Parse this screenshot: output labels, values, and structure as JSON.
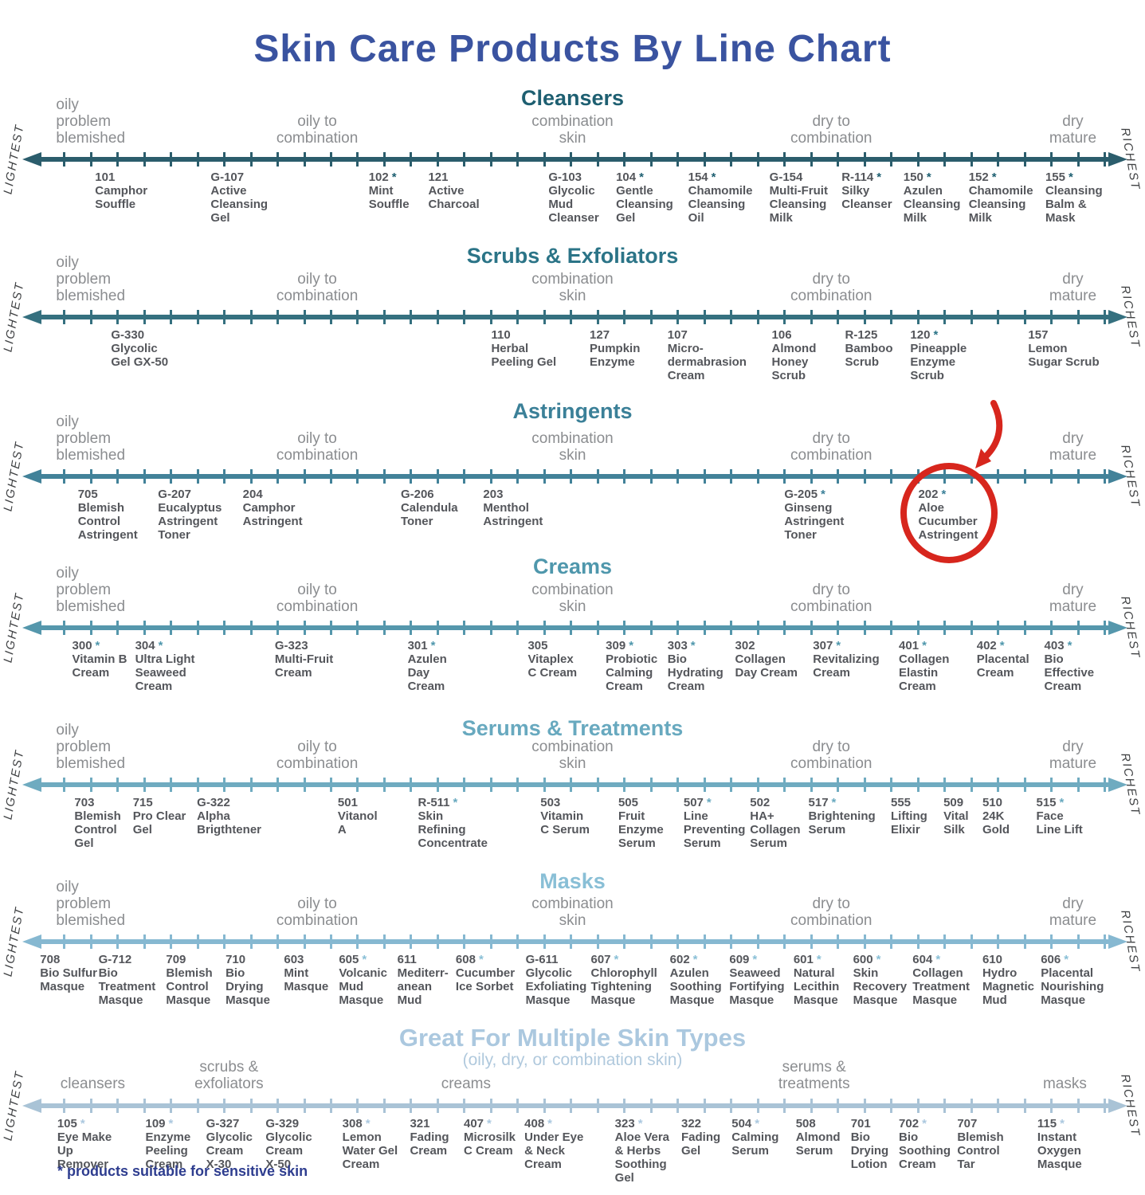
{
  "title": "Skin Care Products By Line Chart",
  "title_color": "#3a53a0",
  "footnote": {
    "text": "* products suitable for sensitive skin",
    "color": "#2e3d8f"
  },
  "side_labels": {
    "left": "LIGHTEST",
    "right": "RICHEST"
  },
  "axis_labels_standard": [
    {
      "text": "oily\nproblem\nblemished",
      "x": 4.9,
      "align": "left"
    },
    {
      "text": "oily to\ncombination",
      "x": 27.7,
      "align": "center"
    },
    {
      "text": "combination\nskin",
      "x": 50,
      "align": "center"
    },
    {
      "text": "dry to\ncombination",
      "x": 72.6,
      "align": "center"
    },
    {
      "text": "dry\nmature",
      "x": 93.7,
      "align": "center"
    }
  ],
  "sections": [
    {
      "title": "Cleansers",
      "color": "#1e5f71",
      "line_color": "#2b5d6c",
      "products": [
        {
          "num": "101",
          "star": false,
          "name": "Camphor\nSouffle",
          "x": 8.3
        },
        {
          "num": "G-107",
          "star": false,
          "name": "Active\nCleansing\nGel",
          "x": 18.4
        },
        {
          "num": "102",
          "star": true,
          "name": "Mint\nSouffle",
          "x": 32.2
        },
        {
          "num": "121",
          "star": false,
          "name": "Active\nCharcoal",
          "x": 37.4
        },
        {
          "num": "G-103",
          "star": false,
          "name": "Glycolic\nMud\nCleanser",
          "x": 47.9
        },
        {
          "num": "104",
          "star": true,
          "name": "Gentle\nCleansing\nGel",
          "x": 53.8
        },
        {
          "num": "154",
          "star": true,
          "name": "Chamomile\nCleansing\nOil",
          "x": 60.1
        },
        {
          "num": "G-154",
          "star": false,
          "name": "Multi-Fruit\nCleansing\nMilk",
          "x": 67.2
        },
        {
          "num": "R-114",
          "star": true,
          "name": "Silky\nCleanser",
          "x": 73.5
        },
        {
          "num": "150",
          "star": true,
          "name": "Azulen\nCleansing\nMilk",
          "x": 78.9
        },
        {
          "num": "152",
          "star": true,
          "name": "Chamomile\nCleansing\nMilk",
          "x": 84.6
        },
        {
          "num": "155",
          "star": true,
          "name": "Cleansing\nBalm &\nMask",
          "x": 91.3
        }
      ]
    },
    {
      "title": "Scrubs & Exfoliators",
      "color": "#2b7487",
      "line_color": "#35707f",
      "products": [
        {
          "num": "G-330",
          "star": false,
          "name": "Glycolic\nGel GX-50",
          "x": 9.7
        },
        {
          "num": "110",
          "star": false,
          "name": "Herbal\nPeeling Gel",
          "x": 42.9
        },
        {
          "num": "127",
          "star": false,
          "name": "Pumpkin\nEnzyme",
          "x": 51.5
        },
        {
          "num": "107",
          "star": false,
          "name": "Micro-\ndermabrasion\nCream",
          "x": 58.3
        },
        {
          "num": "106",
          "star": false,
          "name": "Almond\nHoney\nScrub",
          "x": 67.4
        },
        {
          "num": "R-125",
          "star": false,
          "name": "Bamboo\nScrub",
          "x": 73.8
        },
        {
          "num": "120",
          "star": true,
          "name": "Pineapple\nEnzyme\nScrub",
          "x": 79.5
        },
        {
          "num": "157",
          "star": false,
          "name": "Lemon\nSugar Scrub",
          "x": 89.8
        }
      ]
    },
    {
      "title": "Astringents",
      "color": "#3b8098",
      "line_color": "#428299",
      "products": [
        {
          "num": "705",
          "star": false,
          "name": "Blemish\nControl\nAstringent",
          "x": 6.8
        },
        {
          "num": "G-207",
          "star": false,
          "name": "Eucalyptus\nAstringent\nToner",
          "x": 13.8
        },
        {
          "num": "204",
          "star": false,
          "name": "Camphor\nAstringent",
          "x": 21.2
        },
        {
          "num": "G-206",
          "star": false,
          "name": "Calendula\nToner",
          "x": 35.0
        },
        {
          "num": "203",
          "star": false,
          "name": "Menthol\nAstringent",
          "x": 42.2
        },
        {
          "num": "G-205",
          "star": true,
          "name": "Ginseng\nAstringent\nToner",
          "x": 68.5
        },
        {
          "num": "202",
          "star": true,
          "name": "Aloe\nCucumber\nAstringent",
          "x": 80.2
        }
      ]
    },
    {
      "title": "Creams",
      "color": "#4f97ac",
      "line_color": "#5597ac",
      "products": [
        {
          "num": "300",
          "star": true,
          "name": "Vitamin B\nCream",
          "x": 6.3
        },
        {
          "num": "304",
          "star": true,
          "name": "Ultra Light\nSeaweed\nCream",
          "x": 11.8
        },
        {
          "num": "G-323",
          "star": false,
          "name": "Multi-Fruit\nCream",
          "x": 24.0
        },
        {
          "num": "301",
          "star": true,
          "name": "Azulen\nDay\nCream",
          "x": 35.6
        },
        {
          "num": "305",
          "star": false,
          "name": "Vitaplex\nC Cream",
          "x": 46.1
        },
        {
          "num": "309",
          "star": true,
          "name": "Probiotic\nCalming\nCream",
          "x": 52.9
        },
        {
          "num": "303",
          "star": true,
          "name": "Bio\nHydrating\nCream",
          "x": 58.3
        },
        {
          "num": "302",
          "star": false,
          "name": "Collagen\nDay Cream",
          "x": 64.2
        },
        {
          "num": "307",
          "star": true,
          "name": "Revitalizing\nCream",
          "x": 71.0
        },
        {
          "num": "401",
          "star": true,
          "name": "Collagen\nElastin\nCream",
          "x": 78.5
        },
        {
          "num": "402",
          "star": true,
          "name": "Placental\nCream",
          "x": 85.3
        },
        {
          "num": "403",
          "star": true,
          "name": "Bio\nEffective\nCream",
          "x": 91.2
        }
      ]
    },
    {
      "title": "Serums & Treatments",
      "color": "#68a9bf",
      "line_color": "#6fabc0",
      "products": [
        {
          "num": "703",
          "star": false,
          "name": "Blemish\nControl\nGel",
          "x": 6.5
        },
        {
          "num": "715",
          "star": false,
          "name": "Pro Clear\nGel",
          "x": 11.6
        },
        {
          "num": "G-322",
          "star": false,
          "name": "Alpha\nBrigthtener",
          "x": 17.2
        },
        {
          "num": "501",
          "star": false,
          "name": "Vitanol\nA",
          "x": 29.5
        },
        {
          "num": "R-511",
          "star": true,
          "name": "Skin\nRefining\nConcentrate",
          "x": 36.5
        },
        {
          "num": "503",
          "star": false,
          "name": "Vitamin\nC Serum",
          "x": 47.2
        },
        {
          "num": "505",
          "star": false,
          "name": "Fruit\nEnzyme\nSerum",
          "x": 54.0
        },
        {
          "num": "507",
          "star": true,
          "name": "Line\nPreventing\nSerum",
          "x": 59.7
        },
        {
          "num": "502",
          "star": false,
          "name": "HA+\nCollagen\nSerum",
          "x": 65.5
        },
        {
          "num": "517",
          "star": true,
          "name": "Brightening\nSerum",
          "x": 70.6
        },
        {
          "num": "555",
          "star": false,
          "name": "Lifting\nElixir",
          "x": 77.8
        },
        {
          "num": "509",
          "star": false,
          "name": "Vital\nSilk",
          "x": 82.4
        },
        {
          "num": "510",
          "star": false,
          "name": "24K\nGold",
          "x": 85.8
        },
        {
          "num": "515",
          "star": true,
          "name": "Face\nLine Lift",
          "x": 90.5
        }
      ]
    },
    {
      "title": "Masks",
      "color": "#89bfd6",
      "line_color": "#86b8d1",
      "products": [
        {
          "num": "708",
          "star": false,
          "name": "Bio Sulfur\nMasque",
          "x": 3.5
        },
        {
          "num": "G-712",
          "star": false,
          "name": "Bio\nTreatment\nMasque",
          "x": 8.6
        },
        {
          "num": "709",
          "star": false,
          "name": "Blemish\nControl\nMasque",
          "x": 14.5
        },
        {
          "num": "710",
          "star": false,
          "name": "Bio\nDrying\nMasque",
          "x": 19.7
        },
        {
          "num": "603",
          "star": false,
          "name": "Mint\nMasque",
          "x": 24.8
        },
        {
          "num": "605",
          "star": true,
          "name": "Volcanic\nMud\nMasque",
          "x": 29.6
        },
        {
          "num": "611",
          "star": false,
          "name": "Mediterr-\nanean\nMud",
          "x": 34.7
        },
        {
          "num": "608",
          "star": true,
          "name": "Cucumber\nIce Sorbet",
          "x": 39.8
        },
        {
          "num": "G-611",
          "star": false,
          "name": "Glycolic\nExfoliating\nMasque",
          "x": 45.9
        },
        {
          "num": "607",
          "star": true,
          "name": "Chlorophyll\nTightening\nMasque",
          "x": 51.6
        },
        {
          "num": "602",
          "star": true,
          "name": "Azulen\nSoothing\nMasque",
          "x": 58.5
        },
        {
          "num": "609",
          "star": true,
          "name": "Seaweed\nFortifying\nMasque",
          "x": 63.7
        },
        {
          "num": "601",
          "star": true,
          "name": "Natural\nLecithin\nMasque",
          "x": 69.3
        },
        {
          "num": "600",
          "star": true,
          "name": "Skin\nRecovery\nMasque",
          "x": 74.5
        },
        {
          "num": "604",
          "star": true,
          "name": "Collagen\nTreatment\nMasque",
          "x": 79.7
        },
        {
          "num": "610",
          "star": false,
          "name": "Hydro\nMagnetic\nMud",
          "x": 85.8
        },
        {
          "num": "606",
          "star": true,
          "name": "Placental\nNourishing\nMasque",
          "x": 90.9
        }
      ]
    },
    {
      "title": "Great For Multiple Skin Types",
      "subtitle": "(oily, dry, or combination skin)",
      "color": "#abc8df",
      "line_color": "#a9c3d6",
      "subtitle_color": "#b0c9dd",
      "categories": [
        {
          "text": "cleansers",
          "x": 8.1,
          "align": "center"
        },
        {
          "text": "scrubs &\nexfoliators",
          "x": 20.0,
          "align": "center"
        },
        {
          "text": "creams",
          "x": 40.7,
          "align": "center"
        },
        {
          "text": "serums &\ntreatments",
          "x": 71.1,
          "align": "center"
        },
        {
          "text": "masks",
          "x": 93.0,
          "align": "center"
        }
      ],
      "products": [
        {
          "num": "105",
          "star": true,
          "name": "Eye Make\nUp\nRemover",
          "x": 5.0
        },
        {
          "num": "109",
          "star": true,
          "name": "Enzyme\nPeeling\nCream",
          "x": 12.7
        },
        {
          "num": "G-327",
          "star": false,
          "name": "Glycolic\nCream\nX-30",
          "x": 18.0
        },
        {
          "num": "G-329",
          "star": false,
          "name": "Glycolic\nCream\nX-50",
          "x": 23.2
        },
        {
          "num": "308",
          "star": true,
          "name": "Lemon\nWater Gel\nCream",
          "x": 29.9
        },
        {
          "num": "321",
          "star": false,
          "name": "Fading\nCream",
          "x": 35.8
        },
        {
          "num": "407",
          "star": true,
          "name": "Microsilk\nC Cream",
          "x": 40.5
        },
        {
          "num": "408",
          "star": true,
          "name": "Under Eye\n& Neck\nCream",
          "x": 45.8
        },
        {
          "num": "323",
          "star": true,
          "name": "Aloe Vera\n& Herbs\nSoothing\nGel",
          "x": 53.7
        },
        {
          "num": "322",
          "star": false,
          "name": "Fading\nGel",
          "x": 59.5
        },
        {
          "num": "504",
          "star": true,
          "name": "Calming\nSerum",
          "x": 63.9
        },
        {
          "num": "508",
          "star": false,
          "name": "Almond\nSerum",
          "x": 69.5
        },
        {
          "num": "701",
          "star": false,
          "name": "Bio\nDrying\nLotion",
          "x": 74.3
        },
        {
          "num": "702",
          "star": true,
          "name": "Bio\nSoothing\nCream",
          "x": 78.5
        },
        {
          "num": "707",
          "star": false,
          "name": "Blemish\nControl\nTar",
          "x": 83.6
        },
        {
          "num": "115",
          "star": true,
          "name": "Instant\nOxygen\nMasque",
          "x": 90.6
        }
      ]
    }
  ],
  "annotation": {
    "color": "#d7261d",
    "label": "red circle and arrow highlighting product 202 Aloe Cucumber Astringent"
  }
}
